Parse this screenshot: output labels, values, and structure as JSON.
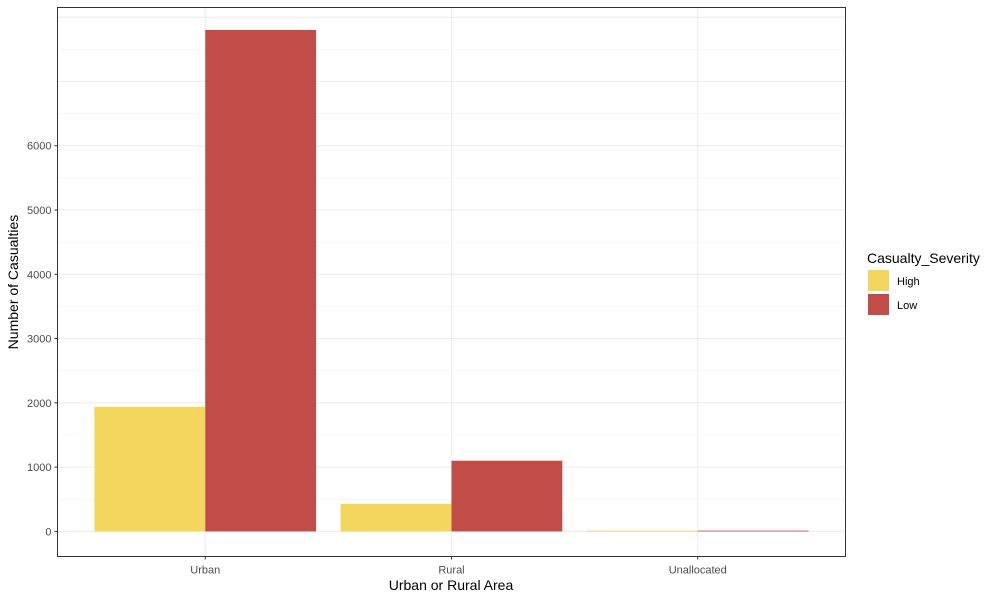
{
  "chart_data": {
    "type": "bar",
    "xlabel": "Urban or Rural Area",
    "ylabel": "Number of Casualties",
    "categories": [
      "Urban",
      "Rural",
      "Unallocated"
    ],
    "series": [
      {
        "name": "High",
        "color": "#F4D55E",
        "values": [
          1940,
          430,
          2
        ]
      },
      {
        "name": "Low",
        "color": "#C24D48",
        "values": [
          7800,
          1100,
          8
        ]
      }
    ],
    "yticks": [
      0,
      1000,
      2000,
      3000,
      4000,
      5000,
      6000
    ],
    "ylim": [
      -390,
      8150
    ],
    "grid": true,
    "legend": {
      "title": "Casualty_Severity",
      "position": "right"
    }
  }
}
